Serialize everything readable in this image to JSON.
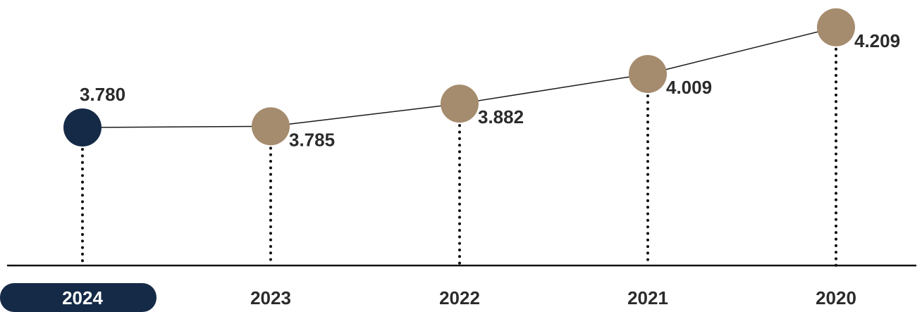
{
  "chart_data": {
    "type": "line",
    "categories": [
      "2024",
      "2023",
      "2022",
      "2021",
      "2020"
    ],
    "values": [
      3.78,
      3.785,
      3.882,
      4.009,
      4.209
    ],
    "value_labels": [
      "3.780",
      "3.785",
      "3.882",
      "4.009",
      "4.209"
    ],
    "highlight_category": "2024",
    "title": "",
    "xlabel": "",
    "ylabel": "",
    "grid": false,
    "legend": "none",
    "colors": {
      "highlight_point": "#152a47",
      "point": "#a58c6e",
      "line": "#1a1a1a",
      "axis": "#111111",
      "dotted_guide": "#111111",
      "highlight_pill": "#152a47",
      "text": "#2b2b2b",
      "highlight_text": "#ffffff"
    }
  }
}
